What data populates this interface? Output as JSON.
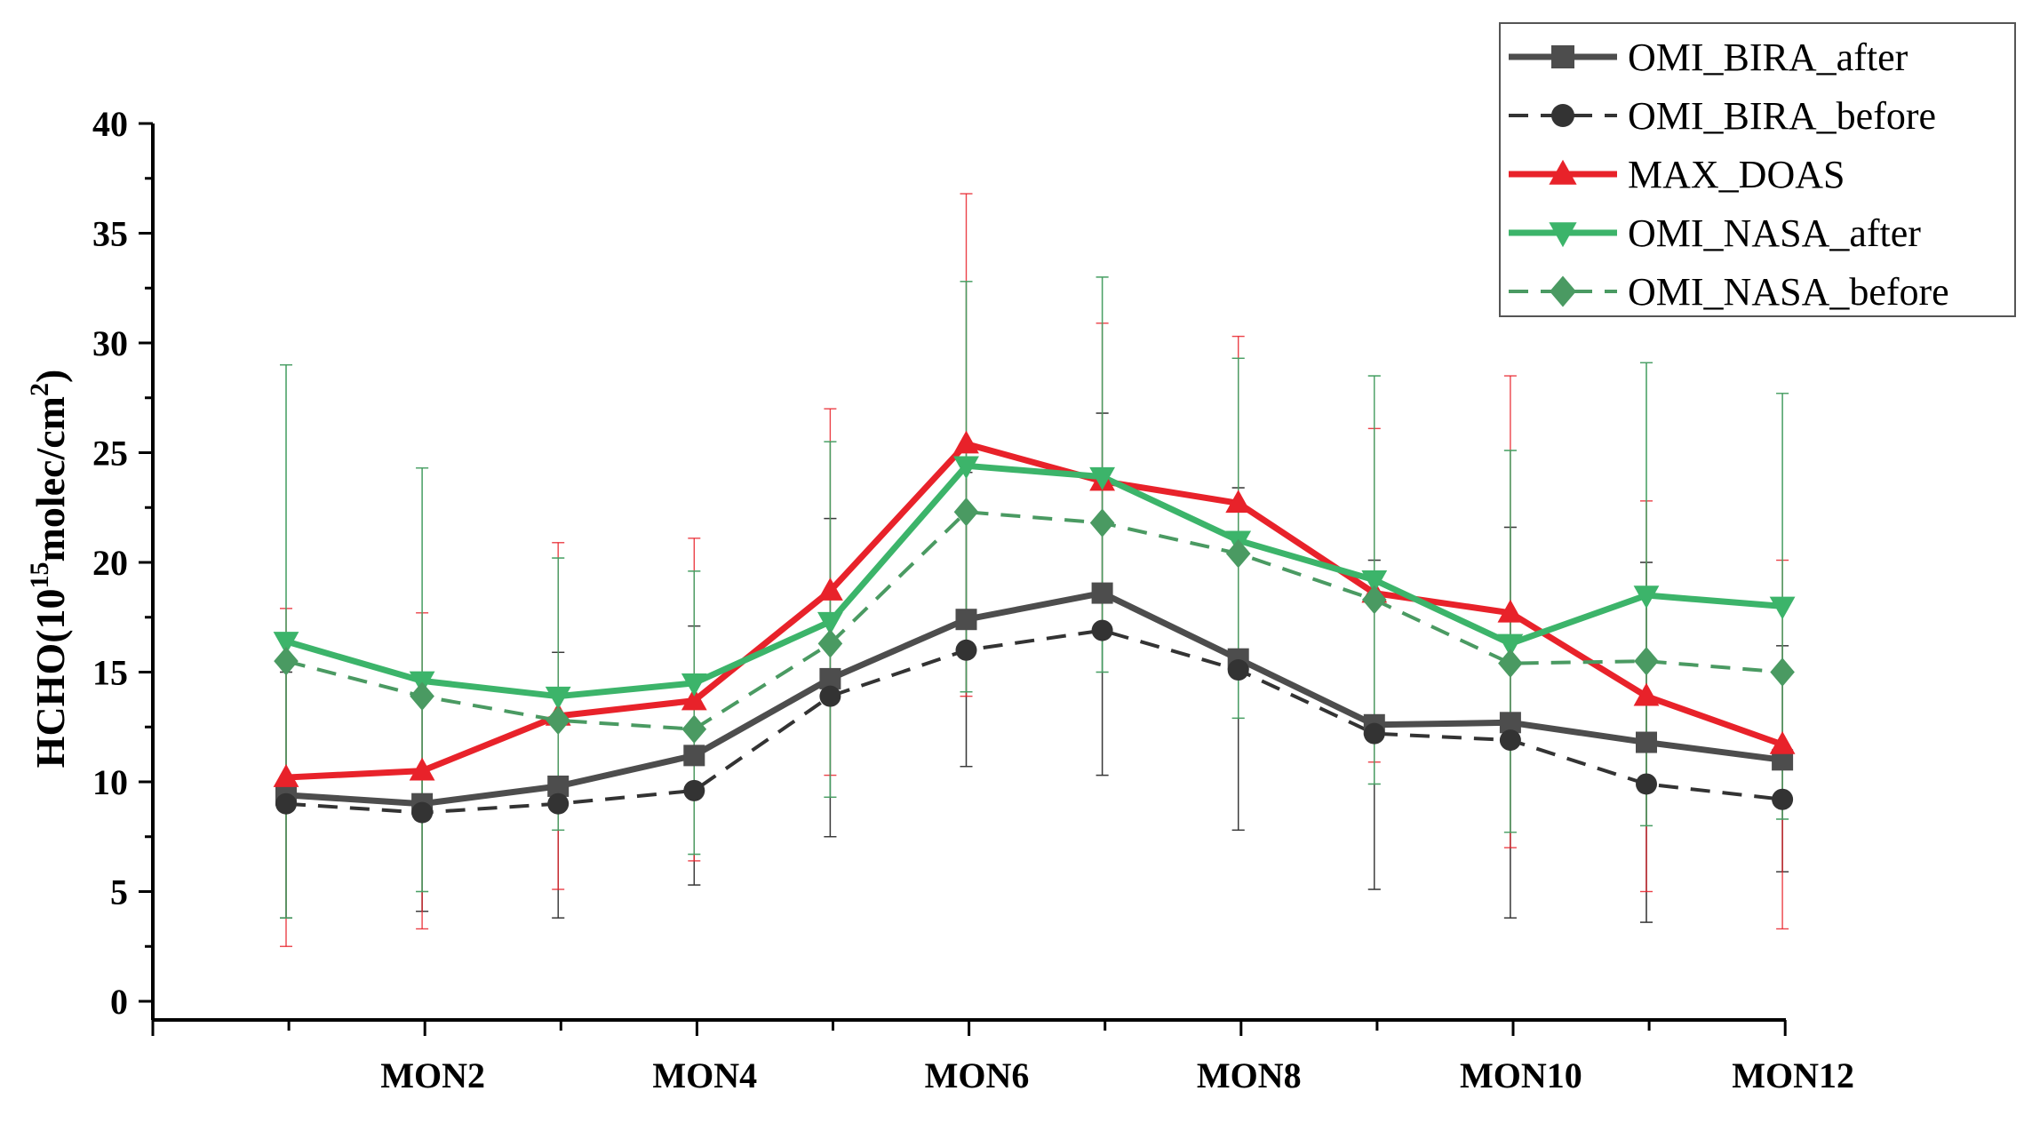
{
  "chart_data": {
    "type": "line",
    "title": "",
    "xlabel": "",
    "ylabel": {
      "prefix": "HCHO(10",
      "sup1": "15",
      "middle": "molec/cm",
      "sup2": "2",
      "suffix": ")"
    },
    "ylim": [
      0,
      40
    ],
    "y_ticks": [
      "0",
      "5",
      "10",
      "15",
      "20",
      "25",
      "30",
      "35",
      "40"
    ],
    "categories": [
      "MON1",
      "MON2",
      "MON3",
      "MON4",
      "MON5",
      "MON6",
      "MON7",
      "MON8",
      "MON9",
      "MON10",
      "MON11",
      "MON12"
    ],
    "category_labels_shown": [
      "MON2",
      "MON4",
      "MON6",
      "MON8",
      "MON10",
      "MON12"
    ],
    "legend_position": "top-right",
    "series": [
      {
        "name": "OMI_BIRA_after",
        "color": "#4d4d4d",
        "marker": "square",
        "dashed": false,
        "values": [
          9.4,
          9.0,
          9.8,
          11.2,
          14.7,
          17.4,
          18.6,
          15.6,
          12.6,
          12.7,
          11.8,
          11.0
        ],
        "error_low": [
          3.8,
          4.1,
          3.8,
          5.3,
          7.5,
          10.7,
          10.3,
          7.8,
          5.1,
          3.8,
          3.6,
          5.9
        ],
        "error_high": [
          15.0,
          13.9,
          15.9,
          17.1,
          22.0,
          24.1,
          26.8,
          23.4,
          20.1,
          21.6,
          20.0,
          16.2
        ]
      },
      {
        "name": "OMI_BIRA_before",
        "color": "#333333",
        "marker": "circle",
        "dashed": true,
        "values": [
          9.0,
          8.6,
          9.0,
          9.6,
          13.9,
          16.0,
          16.9,
          15.1,
          12.2,
          11.9,
          9.9,
          9.2
        ],
        "error_low": [
          3.8,
          4.1,
          3.8,
          5.3,
          7.5,
          10.7,
          10.3,
          7.8,
          5.1,
          3.8,
          3.6,
          5.9
        ],
        "error_high": [
          15.0,
          13.9,
          15.9,
          17.1,
          22.0,
          24.1,
          26.8,
          23.4,
          20.1,
          21.6,
          20.0,
          16.2
        ]
      },
      {
        "name": "MAX_DOAS",
        "color": "#e8222a",
        "marker": "triangle-up",
        "dashed": false,
        "values": [
          10.2,
          10.5,
          13.0,
          13.7,
          18.7,
          25.4,
          23.7,
          22.7,
          18.6,
          17.7,
          13.9,
          11.7
        ],
        "error_low": [
          2.5,
          3.3,
          5.1,
          6.4,
          10.3,
          13.9,
          16.6,
          15.2,
          10.9,
          7.0,
          5.0,
          3.3
        ],
        "error_high": [
          17.9,
          17.7,
          20.9,
          21.1,
          27.0,
          36.8,
          30.9,
          30.3,
          26.1,
          28.5,
          22.8,
          20.1
        ]
      },
      {
        "name": "OMI_NASA_after",
        "color": "#3cb46a",
        "marker": "triangle-down",
        "dashed": false,
        "values": [
          16.4,
          14.6,
          13.9,
          14.5,
          17.3,
          24.4,
          23.9,
          21.0,
          19.2,
          16.3,
          18.5,
          18.0
        ],
        "error_low": [
          3.8,
          5.0,
          7.8,
          6.7,
          9.3,
          14.1,
          15.0,
          12.9,
          9.9,
          7.7,
          8.0,
          8.3
        ],
        "error_high": [
          29.0,
          24.3,
          20.2,
          19.6,
          25.5,
          32.8,
          33.0,
          29.3,
          28.5,
          25.1,
          29.1,
          27.7
        ]
      },
      {
        "name": "OMI_NASA_before",
        "color": "#4a9a62",
        "marker": "diamond",
        "dashed": true,
        "values": [
          15.5,
          13.9,
          12.8,
          12.4,
          16.3,
          22.3,
          21.8,
          20.4,
          18.3,
          15.4,
          15.5,
          15.0
        ],
        "error_low": [
          3.8,
          5.0,
          7.8,
          6.7,
          9.3,
          14.1,
          15.0,
          12.9,
          9.9,
          7.7,
          8.0,
          8.3
        ],
        "error_high": [
          29.0,
          24.3,
          20.2,
          19.6,
          25.5,
          32.8,
          33.0,
          29.3,
          28.5,
          25.1,
          29.1,
          27.7
        ]
      }
    ]
  }
}
